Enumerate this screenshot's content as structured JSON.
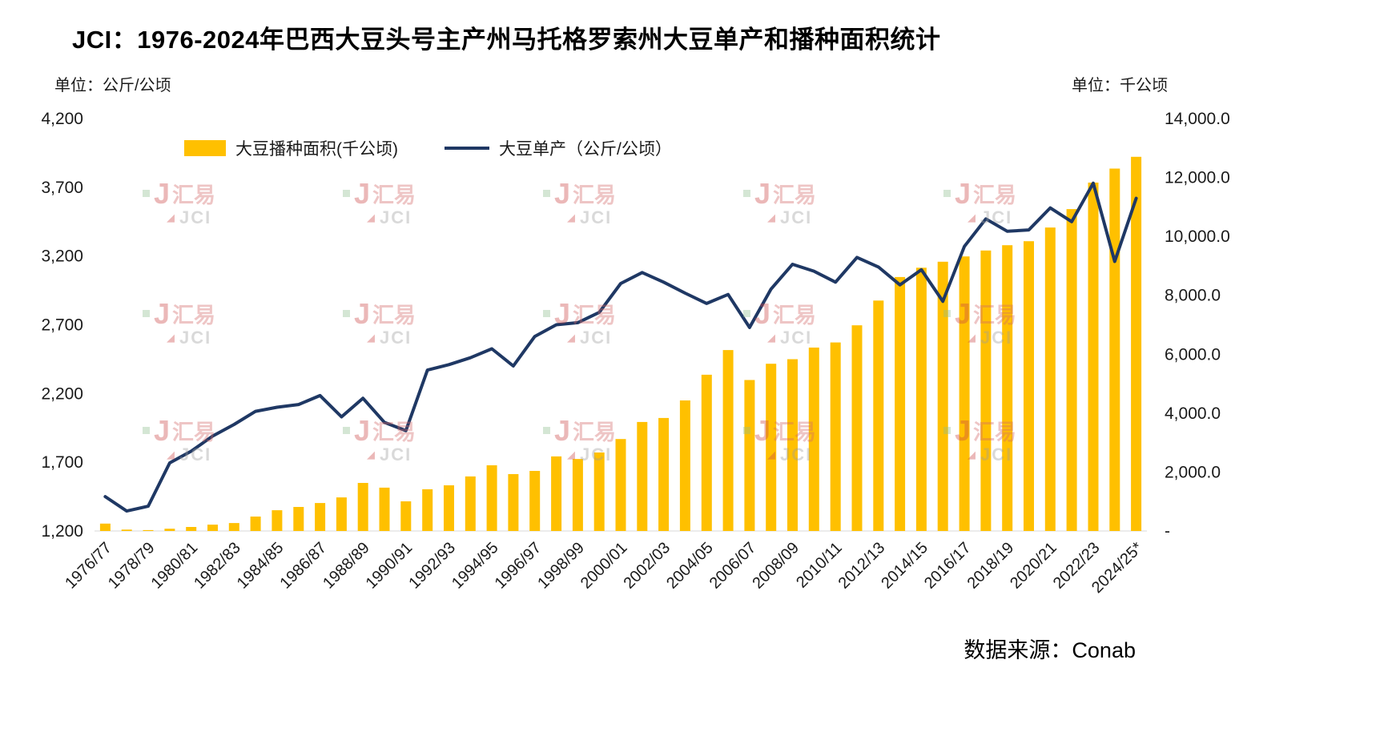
{
  "title": "JCI：1976-2024年巴西大豆头号主产州马托格罗索州大豆单产和播种面积统计",
  "left_unit": "单位：公斤/公顷",
  "right_unit": "单位：千公顷",
  "source": "数据来源：Conab",
  "watermark": {
    "cn": "汇易",
    "en": "JCI",
    "j": "J"
  },
  "legend": [
    {
      "label": "大豆播种面积(千公顷)",
      "type": "bar",
      "color": "#FFC000"
    },
    {
      "label": "大豆单产（公斤/公顷）",
      "type": "line",
      "color": "#1F3864"
    }
  ],
  "chart_data": {
    "type": "bar+line combo",
    "title": "JCI：1976-2024年巴西大豆头号主产州马托格罗索州大豆单产和播种面积统计",
    "categories": [
      "1976/77",
      "1977/78",
      "1978/79",
      "1979/80",
      "1980/81",
      "1981/82",
      "1982/83",
      "1983/84",
      "1984/85",
      "1985/86",
      "1986/87",
      "1987/88",
      "1988/89",
      "1989/90",
      "1990/91",
      "1991/92",
      "1992/93",
      "1993/94",
      "1994/95",
      "1995/96",
      "1996/97",
      "1997/98",
      "1998/99",
      "1999/00",
      "2000/01",
      "2001/02",
      "2002/03",
      "2003/04",
      "2004/05",
      "2005/06",
      "2006/07",
      "2007/08",
      "2008/09",
      "2009/10",
      "2010/11",
      "2011/12",
      "2012/13",
      "2013/14",
      "2014/15",
      "2015/16",
      "2016/17",
      "2017/18",
      "2018/19",
      "2019/20",
      "2020/21",
      "2021/22",
      "2022/23",
      "2023/24",
      "2024/25*"
    ],
    "x_tick_step": 2,
    "series": [
      {
        "name": "大豆播种面积(千公顷)",
        "type": "bar",
        "axis": "right",
        "color": "#FFC000",
        "values": [
          250,
          45,
          30,
          75,
          135,
          215,
          270,
          490,
          705,
          815,
          950,
          1140,
          1630,
          1470,
          1005,
          1415,
          1550,
          1850,
          2230,
          1930,
          2040,
          2530,
          2445,
          2665,
          3120,
          3700,
          3835,
          4430,
          5305,
          6140,
          5125,
          5675,
          5830,
          6225,
          6400,
          6980,
          7820,
          8620,
          8935,
          9140,
          9320,
          9520,
          9700,
          9835,
          10300,
          10925,
          11825,
          12300,
          12700
        ]
      },
      {
        "name": "大豆单产（公斤/公顷）",
        "type": "line",
        "axis": "left",
        "color": "#1F3864",
        "values": [
          1450,
          1345,
          1380,
          1695,
          1780,
          1890,
          1975,
          2070,
          2100,
          2120,
          2185,
          2030,
          2165,
          1990,
          1930,
          2370,
          2410,
          2460,
          2525,
          2400,
          2615,
          2700,
          2715,
          2790,
          3000,
          3080,
          3010,
          2930,
          2855,
          2920,
          2680,
          2960,
          3140,
          3090,
          3010,
          3190,
          3120,
          2990,
          3100,
          2870,
          3270,
          3470,
          3380,
          3390,
          3550,
          3450,
          3730,
          3160,
          3620
        ]
      }
    ],
    "left_axis": {
      "label": "单位：公斤/公顷",
      "min": 1200,
      "max": 4200,
      "ticks": [
        "4,200",
        "3,700",
        "3,200",
        "2,700",
        "2,200",
        "1,700",
        "1,200"
      ]
    },
    "right_axis": {
      "label": "单位：千公顷",
      "min": 0,
      "max": 14000,
      "ticks": [
        "14,000.0",
        "12,000.0",
        "10,000.0",
        "8,000.0",
        "6,000.0",
        "4,000.0",
        "2,000.0",
        "-"
      ]
    },
    "grid": false,
    "legend_position": "top",
    "source": "数据来源：Conab"
  }
}
